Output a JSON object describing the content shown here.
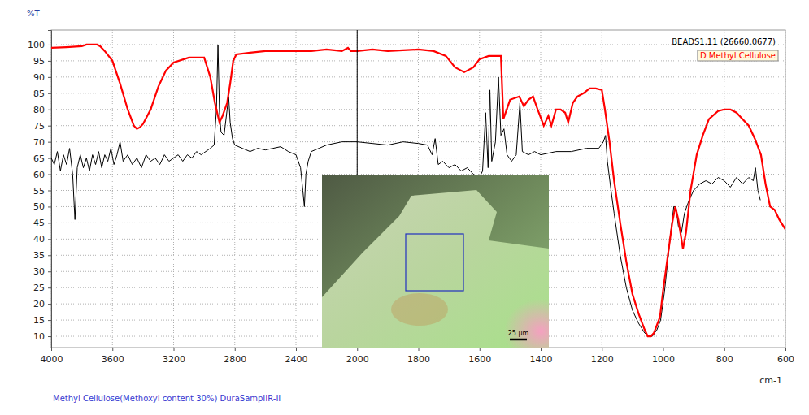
{
  "chart_data": {
    "type": "line",
    "subtitle": "Methyl Cellulose(Methoxyl content 30%) DuraSampIIR-II",
    "x_label": "cm-1",
    "y_label": "%T",
    "xlim": [
      4000,
      600
    ],
    "xticks": [
      4000,
      3600,
      3200,
      2800,
      2400,
      2000,
      1800,
      1600,
      1400,
      1200,
      1000,
      800,
      600
    ],
    "ylim": [
      6.5,
      104.5
    ],
    "yticks": [
      10,
      15,
      20,
      25,
      30,
      35,
      40,
      45,
      50,
      55,
      60,
      65,
      70,
      75,
      80,
      85,
      90,
      95,
      100
    ],
    "grid": true,
    "legend": "upper right",
    "cursor": 2000,
    "inset_label": "25 µm",
    "series": [
      {
        "name": "BEADS1.11 (26660.0677)",
        "color": "#000000",
        "x": [
          4000,
          3980,
          3960,
          3940,
          3920,
          3900,
          3880,
          3860,
          3845,
          3830,
          3810,
          3790,
          3770,
          3750,
          3730,
          3710,
          3690,
          3670,
          3650,
          3630,
          3610,
          3590,
          3570,
          3550,
          3530,
          3500,
          3470,
          3440,
          3410,
          3380,
          3350,
          3320,
          3290,
          3260,
          3230,
          3200,
          3170,
          3140,
          3110,
          3080,
          3050,
          3020,
          2990,
          2960,
          2935,
          2920,
          2910,
          2900,
          2890,
          2870,
          2850,
          2840,
          2830,
          2815,
          2800,
          2750,
          2700,
          2650,
          2600,
          2550,
          2500,
          2450,
          2400,
          2370,
          2355,
          2345,
          2335,
          2320,
          2300,
          2250,
          2200,
          2150,
          2100,
          2050,
          2000,
          1950,
          1900,
          1850,
          1800,
          1770,
          1755,
          1745,
          1735,
          1720,
          1700,
          1680,
          1660,
          1640,
          1620,
          1600,
          1590,
          1580,
          1572,
          1566,
          1560,
          1548,
          1538,
          1530,
          1520,
          1510,
          1495,
          1480,
          1468,
          1460,
          1440,
          1420,
          1400,
          1350,
          1300,
          1250,
          1210,
          1195,
          1188,
          1182,
          1170,
          1160,
          1140,
          1120,
          1100,
          1080,
          1060,
          1045,
          1035,
          1020,
          1008,
          995,
          985,
          975,
          965,
          958,
          950,
          940,
          930,
          915,
          900,
          880,
          860,
          840,
          820,
          800,
          780,
          760,
          740,
          720,
          705,
          698,
          690,
          682
        ],
        "values": [
          65,
          63,
          67,
          61,
          66,
          63,
          68,
          60,
          46,
          62,
          66,
          62,
          65,
          61,
          66,
          63,
          67,
          62,
          66,
          64,
          68,
          63,
          66,
          70,
          64,
          66,
          63,
          65,
          62,
          66,
          64,
          65,
          63,
          66,
          64,
          65,
          66,
          64,
          66,
          65,
          67,
          66,
          67,
          68,
          69,
          80,
          100,
          79,
          73,
          72,
          80,
          84,
          76,
          71,
          69,
          68,
          67,
          68,
          67.5,
          68,
          68.5,
          67,
          66,
          62,
          55,
          50,
          60,
          64,
          67,
          68,
          69,
          69.5,
          70,
          70,
          70,
          69.5,
          69,
          70,
          69.5,
          69,
          66,
          71,
          63,
          64,
          62,
          63,
          61,
          62,
          60,
          59,
          61,
          79,
          62,
          86,
          64,
          70,
          90,
          72,
          74,
          66,
          64,
          66,
          82,
          67,
          66,
          67,
          66,
          67,
          67,
          68,
          68,
          70,
          72,
          64,
          55,
          48,
          35,
          25,
          18,
          14,
          11,
          10,
          10,
          12,
          15,
          24,
          33,
          42,
          50,
          50,
          44,
          42,
          48,
          52,
          55,
          57,
          58,
          57,
          59,
          58,
          56,
          59,
          57,
          59,
          58,
          62,
          55,
          52
        ]
      },
      {
        "name": "D Methyl Cellulose",
        "color": "#ff0000",
        "x": [
          4000,
          3900,
          3800,
          3770,
          3700,
          3680,
          3650,
          3600,
          3550,
          3500,
          3460,
          3440,
          3420,
          3400,
          3350,
          3300,
          3250,
          3200,
          3100,
          3000,
          2960,
          2930,
          2900,
          2880,
          2850,
          2830,
          2810,
          2790,
          2700,
          2600,
          2500,
          2400,
          2300,
          2200,
          2100,
          2060,
          2040,
          2000,
          1950,
          1900,
          1800,
          1750,
          1710,
          1680,
          1650,
          1620,
          1600,
          1570,
          1530,
          1522,
          1500,
          1470,
          1455,
          1440,
          1425,
          1410,
          1390,
          1375,
          1365,
          1350,
          1335,
          1320,
          1310,
          1295,
          1280,
          1260,
          1240,
          1220,
          1200,
          1190,
          1175,
          1160,
          1140,
          1120,
          1100,
          1080,
          1060,
          1050,
          1040,
          1030,
          1010,
          1000,
          980,
          970,
          960,
          950,
          940,
          935,
          925,
          910,
          890,
          870,
          850,
          820,
          800,
          780,
          760,
          740,
          720,
          700,
          680,
          665,
          650,
          635,
          620,
          600
        ],
        "values": [
          99,
          99.2,
          99.5,
          100,
          100,
          99.5,
          98,
          95,
          88,
          80,
          75,
          74,
          74.5,
          75.5,
          80,
          87,
          92,
          94.5,
          96,
          96,
          90,
          82,
          76,
          78,
          82,
          88,
          95,
          97,
          97.5,
          98,
          98,
          98,
          98,
          98.5,
          98,
          99,
          98,
          98,
          98.5,
          98,
          98.5,
          98,
          96.5,
          93,
          91.5,
          93,
          95.5,
          96.5,
          96.5,
          77,
          83,
          84,
          81,
          83,
          84,
          80,
          75,
          78,
          75,
          80,
          80,
          79,
          76,
          82,
          84,
          85,
          86.5,
          86.5,
          86,
          80,
          70,
          58,
          45,
          33,
          23,
          17,
          12,
          10,
          10,
          11,
          16,
          24,
          38,
          45,
          50,
          46,
          40,
          37,
          42,
          55,
          66,
          72,
          77,
          79.5,
          80,
          80,
          79,
          77,
          75,
          71,
          66,
          57,
          50,
          49,
          46,
          43
        ]
      }
    ]
  }
}
